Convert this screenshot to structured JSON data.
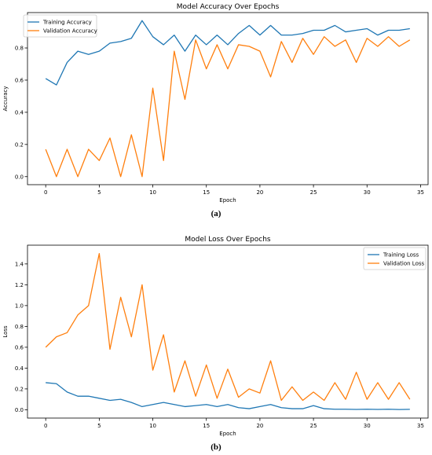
{
  "colors": {
    "training": "#1f77b4",
    "validation": "#ff7f0e",
    "axis": "#000000",
    "background": "#ffffff"
  },
  "captions": {
    "a": "(a)",
    "b": "(b)"
  },
  "chart_data": [
    {
      "type": "line",
      "title": "Model Accuracy Over Epochs",
      "xlabel": "Epoch",
      "ylabel": "Accuracy",
      "xlim": [
        -1.7,
        35.7
      ],
      "ylim": [
        -0.05,
        1.02
      ],
      "xticks": [
        0,
        5,
        10,
        15,
        20,
        25,
        30,
        35
      ],
      "yticks": [
        0.0,
        0.2,
        0.4,
        0.6,
        0.8
      ],
      "ytick_labels": [
        "0.0",
        "0.2",
        "0.4",
        "0.6",
        "0.8"
      ],
      "legend_position": "top-left",
      "grid": false,
      "x": [
        0,
        1,
        2,
        3,
        4,
        5,
        6,
        7,
        8,
        9,
        10,
        11,
        12,
        13,
        14,
        15,
        16,
        17,
        18,
        19,
        20,
        21,
        22,
        23,
        24,
        25,
        26,
        27,
        28,
        29,
        30,
        31,
        32,
        33,
        34
      ],
      "series": [
        {
          "name": "Training Accuracy",
          "color": "#1f77b4",
          "values": [
            0.61,
            0.57,
            0.71,
            0.78,
            0.76,
            0.78,
            0.83,
            0.84,
            0.86,
            0.97,
            0.87,
            0.82,
            0.88,
            0.78,
            0.88,
            0.82,
            0.88,
            0.82,
            0.89,
            0.94,
            0.88,
            0.94,
            0.88,
            0.88,
            0.89,
            0.91,
            0.91,
            0.94,
            0.9,
            0.91,
            0.92,
            0.88,
            0.91,
            0.91,
            0.92
          ]
        },
        {
          "name": "Validation Accuracy",
          "color": "#ff7f0e",
          "values": [
            0.17,
            0.0,
            0.17,
            0.0,
            0.17,
            0.1,
            0.24,
            0.0,
            0.26,
            0.0,
            0.55,
            0.1,
            0.78,
            0.48,
            0.85,
            0.67,
            0.82,
            0.67,
            0.82,
            0.81,
            0.78,
            0.62,
            0.84,
            0.71,
            0.86,
            0.76,
            0.87,
            0.81,
            0.85,
            0.71,
            0.86,
            0.81,
            0.87,
            0.81,
            0.85
          ]
        }
      ]
    },
    {
      "type": "line",
      "title": "Model Loss Over Epochs",
      "xlabel": "Epoch",
      "ylabel": "Loss",
      "xlim": [
        -1.7,
        35.7
      ],
      "ylim": [
        -0.08,
        1.58
      ],
      "xticks": [
        0,
        5,
        10,
        15,
        20,
        25,
        30,
        35
      ],
      "yticks": [
        0.0,
        0.2,
        0.4,
        0.6,
        0.8,
        1.0,
        1.2,
        1.4
      ],
      "ytick_labels": [
        "0.0",
        "0.2",
        "0.4",
        "0.6",
        "0.8",
        "1.0",
        "1.2",
        "1.4"
      ],
      "legend_position": "top-right",
      "grid": false,
      "x": [
        0,
        1,
        2,
        3,
        4,
        5,
        6,
        7,
        8,
        9,
        10,
        11,
        12,
        13,
        14,
        15,
        16,
        17,
        18,
        19,
        20,
        21,
        22,
        23,
        24,
        25,
        26,
        27,
        28,
        29,
        30,
        31,
        32,
        33,
        34
      ],
      "series": [
        {
          "name": "Training Loss",
          "color": "#1f77b4",
          "values": [
            0.26,
            0.25,
            0.17,
            0.13,
            0.13,
            0.11,
            0.09,
            0.1,
            0.07,
            0.03,
            0.05,
            0.07,
            0.05,
            0.03,
            0.04,
            0.05,
            0.03,
            0.05,
            0.02,
            0.01,
            0.03,
            0.05,
            0.02,
            0.01,
            0.01,
            0.04,
            0.01,
            0.005,
            0.005,
            0.003,
            0.005,
            0.003,
            0.005,
            0.002,
            0.004
          ]
        },
        {
          "name": "Validation Loss",
          "color": "#ff7f0e",
          "values": [
            0.6,
            0.7,
            0.74,
            0.91,
            1.0,
            1.5,
            0.58,
            1.08,
            0.7,
            1.2,
            0.38,
            0.72,
            0.17,
            0.47,
            0.13,
            0.43,
            0.11,
            0.39,
            0.12,
            0.2,
            0.16,
            0.47,
            0.09,
            0.22,
            0.09,
            0.17,
            0.09,
            0.26,
            0.1,
            0.36,
            0.1,
            0.26,
            0.1,
            0.26,
            0.1
          ]
        }
      ]
    }
  ]
}
